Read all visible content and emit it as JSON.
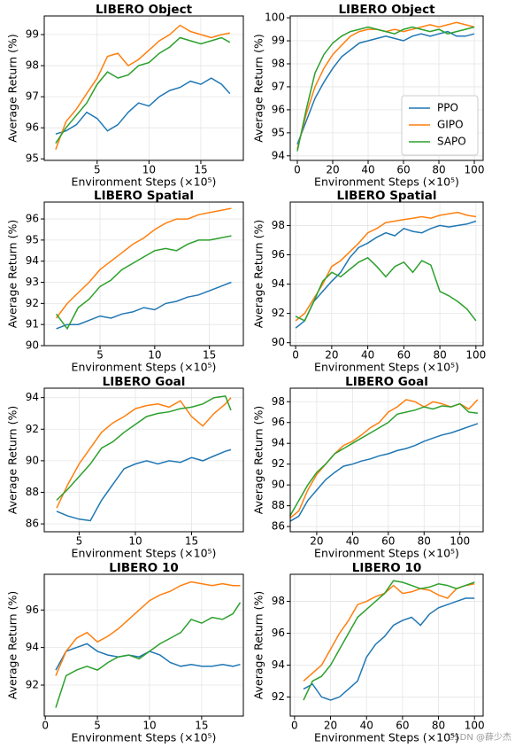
{
  "chart_data": [
    {
      "type": "line",
      "title": "LIBERO Object",
      "xlabel": "Environment Steps (×10⁵)",
      "ylabel": "Average Return (%)",
      "x": [
        1,
        2,
        3,
        4,
        5,
        6,
        7,
        8,
        9,
        10,
        11,
        12,
        13,
        14,
        15,
        16,
        17,
        17.8
      ],
      "series": [
        {
          "color": "#1f77b4",
          "values": [
            95.8,
            95.9,
            96.1,
            96.5,
            96.3,
            95.9,
            96.1,
            96.5,
            96.8,
            96.7,
            97.0,
            97.2,
            97.3,
            97.5,
            97.4,
            97.6,
            97.4,
            97.1
          ]
        },
        {
          "color": "#ff7f0e",
          "values": [
            95.3,
            96.2,
            96.6,
            97.1,
            97.6,
            98.3,
            98.4,
            98.0,
            98.2,
            98.5,
            98.8,
            99.0,
            99.3,
            99.1,
            99.0,
            98.9,
            99.0,
            99.05
          ]
        },
        {
          "color": "#2ca02c",
          "values": [
            95.5,
            96.0,
            96.4,
            96.8,
            97.4,
            97.8,
            97.6,
            97.7,
            98.0,
            98.1,
            98.4,
            98.6,
            98.9,
            98.8,
            98.7,
            98.8,
            98.9,
            98.75
          ]
        }
      ],
      "xlim": [
        -0.1,
        19.1
      ],
      "ylim": [
        94.95,
        99.6
      ],
      "xticks": [
        5,
        10,
        15
      ],
      "yticks": [
        95,
        96,
        97,
        98,
        99
      ],
      "grid": true
    },
    {
      "type": "line",
      "title": "LIBERO Object",
      "xlabel": "Environment Steps (×10⁵)",
      "ylabel": "Average Return (%)",
      "x": [
        0,
        5,
        10,
        15,
        20,
        25,
        30,
        35,
        40,
        45,
        50,
        55,
        60,
        65,
        70,
        75,
        80,
        85,
        90,
        95,
        100
      ],
      "series": [
        {
          "name": "PPO",
          "color": "#1f77b4",
          "values": [
            94.5,
            95.5,
            96.5,
            97.2,
            97.8,
            98.3,
            98.6,
            98.9,
            99.0,
            99.1,
            99.2,
            99.1,
            99.0,
            99.2,
            99.3,
            99.2,
            99.3,
            99.4,
            99.2,
            99.2,
            99.3
          ]
        },
        {
          "name": "GIPO",
          "color": "#ff7f0e",
          "values": [
            94.3,
            95.8,
            97.0,
            97.8,
            98.4,
            98.8,
            99.2,
            99.4,
            99.5,
            99.5,
            99.4,
            99.5,
            99.4,
            99.5,
            99.6,
            99.7,
            99.6,
            99.7,
            99.8,
            99.7,
            99.6
          ]
        },
        {
          "name": "SAPO",
          "color": "#2ca02c",
          "values": [
            94.2,
            96.0,
            97.6,
            98.4,
            98.9,
            99.2,
            99.4,
            99.5,
            99.6,
            99.5,
            99.4,
            99.3,
            99.5,
            99.6,
            99.5,
            99.4,
            99.5,
            99.3,
            99.4,
            99.5,
            99.6
          ]
        }
      ],
      "xlim": [
        -4,
        105
      ],
      "ylim": [
        93.8,
        100.08
      ],
      "xticks": [
        0,
        20,
        40,
        60,
        80,
        100
      ],
      "yticks": [
        94,
        95,
        96,
        97,
        98,
        99,
        100
      ],
      "grid": true,
      "legend": "lower right"
    },
    {
      "type": "line",
      "title": "LIBERO Spatial",
      "xlabel": "Environment Steps (×10⁵)",
      "ylabel": "Average Return (%)",
      "x": [
        1,
        2,
        3,
        4,
        5,
        6,
        7,
        8,
        9,
        10,
        11,
        12,
        13,
        14,
        15,
        16,
        17
      ],
      "series": [
        {
          "color": "#1f77b4",
          "values": [
            90.8,
            91.0,
            91.0,
            91.2,
            91.4,
            91.3,
            91.5,
            91.6,
            91.8,
            91.7,
            92.0,
            92.1,
            92.3,
            92.4,
            92.6,
            92.8,
            93.0
          ]
        },
        {
          "color": "#ff7f0e",
          "values": [
            91.3,
            92.0,
            92.5,
            93.0,
            93.6,
            94.0,
            94.4,
            94.8,
            95.1,
            95.5,
            95.8,
            96.0,
            96.0,
            96.2,
            96.3,
            96.4,
            96.5
          ]
        },
        {
          "color": "#2ca02c",
          "values": [
            91.5,
            90.8,
            91.8,
            92.2,
            92.8,
            93.1,
            93.6,
            93.9,
            94.2,
            94.5,
            94.6,
            94.5,
            94.8,
            95.0,
            95.0,
            95.1,
            95.2
          ]
        }
      ],
      "xlim": [
        -0.1,
        18.1
      ],
      "ylim": [
        90,
        96.8
      ],
      "xticks": [
        5,
        10,
        15
      ],
      "yticks": [
        90,
        91,
        92,
        93,
        94,
        95,
        96
      ],
      "grid": true
    },
    {
      "type": "line",
      "title": "LIBERO Spatial",
      "xlabel": "Environment Steps (×10⁵)",
      "ylabel": "Average Return (%)",
      "x": [
        0,
        5,
        10,
        15,
        20,
        25,
        30,
        35,
        40,
        45,
        50,
        55,
        60,
        65,
        70,
        75,
        80,
        85,
        90,
        95,
        100
      ],
      "series": [
        {
          "color": "#1f77b4",
          "values": [
            91.0,
            91.5,
            92.8,
            93.5,
            94.2,
            94.8,
            95.8,
            96.5,
            96.8,
            97.2,
            97.5,
            97.3,
            97.8,
            97.6,
            97.5,
            97.8,
            98.0,
            97.9,
            98.0,
            98.1,
            98.3
          ]
        },
        {
          "color": "#ff7f0e",
          "values": [
            91.5,
            92.0,
            93.0,
            94.0,
            95.2,
            95.6,
            96.2,
            96.8,
            97.5,
            97.8,
            98.2,
            98.3,
            98.4,
            98.5,
            98.6,
            98.5,
            98.7,
            98.8,
            98.9,
            98.7,
            98.6
          ]
        },
        {
          "color": "#2ca02c",
          "values": [
            91.8,
            91.5,
            92.8,
            94.2,
            94.8,
            94.5,
            95.0,
            95.5,
            95.8,
            95.2,
            94.5,
            95.2,
            95.5,
            94.8,
            95.6,
            95.3,
            93.5,
            93.2,
            92.8,
            92.3,
            91.5
          ]
        }
      ],
      "xlim": [
        -3,
        104
      ],
      "ylim": [
        89.8,
        99.6
      ],
      "xticks": [
        0,
        20,
        40,
        60,
        80,
        100
      ],
      "yticks": [
        90,
        92,
        94,
        96,
        98
      ],
      "grid": true
    },
    {
      "type": "line",
      "title": "LIBERO Goal",
      "xlabel": "Environment Steps (×10⁵)",
      "ylabel": "Average Return (%)",
      "x": [
        3,
        4,
        5,
        6,
        7,
        8,
        9,
        10,
        11,
        12,
        13,
        14,
        15,
        16,
        17,
        18,
        18.5
      ],
      "series": [
        {
          "color": "#1f77b4",
          "values": [
            86.8,
            86.5,
            86.3,
            86.2,
            87.5,
            88.5,
            89.5,
            89.8,
            90.0,
            89.8,
            90.0,
            89.9,
            90.2,
            90.0,
            90.3,
            90.6,
            90.7
          ]
        },
        {
          "color": "#ff7f0e",
          "values": [
            87.0,
            88.5,
            89.8,
            90.8,
            91.8,
            92.4,
            92.8,
            93.3,
            93.5,
            93.6,
            93.4,
            93.8,
            92.8,
            92.2,
            93.0,
            93.6,
            94.0
          ]
        },
        {
          "color": "#2ca02c",
          "values": [
            87.5,
            88.2,
            89.0,
            89.8,
            90.8,
            91.2,
            91.8,
            92.3,
            92.8,
            93.0,
            93.1,
            93.3,
            93.4,
            93.6,
            94.0,
            94.1,
            93.2
          ]
        }
      ],
      "xlim": [
        1.9,
        19.6
      ],
      "ylim": [
        85.5,
        94.6
      ],
      "xticks": [
        5,
        10,
        15
      ],
      "yticks": [
        86,
        88,
        90,
        92,
        94
      ],
      "grid": true
    },
    {
      "type": "line",
      "title": "LIBERO Goal",
      "xlabel": "Environment Steps (×10⁵)",
      "ylabel": "Average Return (%)",
      "x": [
        5,
        10,
        15,
        20,
        25,
        30,
        35,
        40,
        45,
        50,
        55,
        60,
        65,
        70,
        75,
        80,
        85,
        90,
        95,
        100,
        105,
        110
      ],
      "series": [
        {
          "color": "#1f77b4",
          "values": [
            86.5,
            87.0,
            88.5,
            89.5,
            90.5,
            91.2,
            91.8,
            92.0,
            92.3,
            92.5,
            92.8,
            93.0,
            93.3,
            93.5,
            93.8,
            94.2,
            94.5,
            94.8,
            95.0,
            95.3,
            95.6,
            95.9
          ]
        },
        {
          "color": "#ff7f0e",
          "values": [
            86.8,
            87.5,
            89.5,
            91.0,
            92.0,
            93.0,
            93.8,
            94.2,
            94.8,
            95.5,
            96.0,
            97.0,
            97.5,
            98.2,
            98.0,
            97.5,
            98.0,
            97.8,
            97.5,
            97.8,
            97.3,
            98.2
          ]
        },
        {
          "color": "#2ca02c",
          "values": [
            87.0,
            88.5,
            90.0,
            91.2,
            92.0,
            93.0,
            93.5,
            94.0,
            94.5,
            95.0,
            95.5,
            96.0,
            96.8,
            97.0,
            97.2,
            97.5,
            97.3,
            97.6,
            97.5,
            97.8,
            97.0,
            96.9
          ]
        }
      ],
      "xlim": [
        5.2,
        113
      ],
      "ylim": [
        85.5,
        99.3
      ],
      "xticks": [
        20,
        40,
        60,
        80,
        100
      ],
      "yticks": [
        86,
        88,
        90,
        92,
        94,
        96,
        98
      ],
      "grid": true
    },
    {
      "type": "line",
      "title": "LIBERO 10",
      "xlabel": "Environment Steps (×10⁵)",
      "ylabel": "Average Return (%)",
      "x": [
        1,
        2,
        3,
        4,
        5,
        6,
        7,
        8,
        9,
        10,
        11,
        12,
        13,
        14,
        15,
        16,
        17,
        18,
        18.7
      ],
      "series": [
        {
          "color": "#1f77b4",
          "values": [
            92.8,
            93.8,
            94.0,
            94.2,
            93.8,
            93.6,
            93.5,
            93.6,
            93.5,
            93.8,
            93.6,
            93.2,
            93.0,
            93.1,
            93.0,
            93.0,
            93.1,
            93.0,
            93.1
          ]
        },
        {
          "color": "#ff7f0e",
          "values": [
            92.5,
            93.8,
            94.5,
            94.8,
            94.3,
            94.6,
            95.0,
            95.5,
            96.0,
            96.5,
            96.8,
            97.0,
            97.3,
            97.5,
            97.4,
            97.3,
            97.4,
            97.3,
            97.3
          ]
        },
        {
          "color": "#2ca02c",
          "values": [
            90.8,
            92.5,
            92.8,
            93.0,
            92.8,
            93.2,
            93.5,
            93.6,
            93.4,
            93.8,
            94.2,
            94.5,
            94.8,
            95.5,
            95.3,
            95.6,
            95.5,
            95.8,
            96.4
          ]
        }
      ],
      "xlim": [
        -0.1,
        19.0
      ],
      "ylim": [
        90.35,
        97.9
      ],
      "xticks": [
        0,
        5,
        10,
        15
      ],
      "yticks": [
        92,
        94,
        96
      ],
      "grid": true
    },
    {
      "type": "line",
      "title": "LIBERO 10",
      "xlabel": "Environment Steps (×10⁵)",
      "ylabel": "Average Return (%)",
      "x": [
        5,
        10,
        15,
        20,
        25,
        30,
        35,
        40,
        45,
        50,
        55,
        60,
        65,
        70,
        75,
        80,
        85,
        90,
        95,
        100
      ],
      "series": [
        {
          "color": "#1f77b4",
          "values": [
            92.5,
            92.8,
            92.0,
            91.8,
            92.0,
            92.5,
            93.0,
            94.5,
            95.3,
            95.8,
            96.5,
            96.8,
            97.0,
            96.5,
            97.2,
            97.6,
            97.8,
            98.0,
            98.2,
            98.2
          ]
        },
        {
          "color": "#ff7f0e",
          "values": [
            93.0,
            93.5,
            94.0,
            95.0,
            96.0,
            96.8,
            97.8,
            98.0,
            98.3,
            98.5,
            99.0,
            98.5,
            98.6,
            98.8,
            98.7,
            98.4,
            98.2,
            98.8,
            99.0,
            99.1
          ]
        },
        {
          "color": "#2ca02c",
          "values": [
            91.8,
            93.0,
            93.3,
            94.0,
            95.0,
            96.0,
            97.0,
            97.5,
            98.0,
            98.5,
            99.3,
            99.2,
            99.0,
            98.8,
            98.9,
            99.1,
            99.0,
            98.8,
            99.0,
            99.2
          ]
        }
      ],
      "xlim": [
        -2.4,
        104.8
      ],
      "ylim": [
        90.8,
        99.7
      ],
      "xticks": [
        0,
        20,
        40,
        60,
        80,
        100
      ],
      "yticks": [
        92,
        94,
        96,
        98
      ],
      "grid": true
    }
  ],
  "watermark": "CSDN @薛少杰"
}
